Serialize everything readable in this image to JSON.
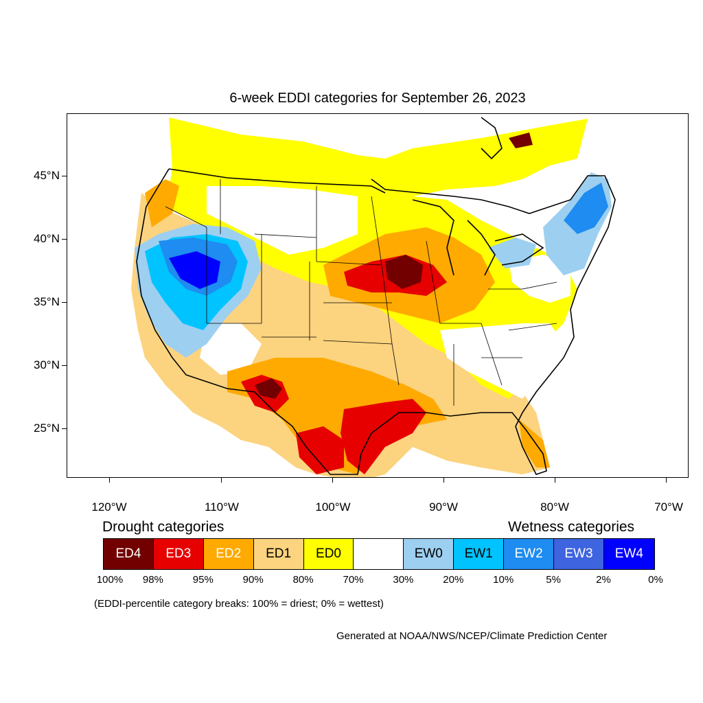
{
  "title": "6-week EDDI categories for September 26, 2023",
  "latitude_labels": [
    "45°N",
    "40°N",
    "35°N",
    "30°N",
    "25°N"
  ],
  "longitude_labels": [
    "120°W",
    "110°W",
    "100°W",
    "90°W",
    "80°W",
    "70°W"
  ],
  "legend": {
    "drought_heading": "Drought categories",
    "wetness_heading": "Wetness categories",
    "categories": [
      {
        "label": "ED4",
        "color": "#730000",
        "text_color": "#ffffff"
      },
      {
        "label": "ED3",
        "color": "#e60000",
        "text_color": "#ffffff"
      },
      {
        "label": "ED2",
        "color": "#ffaa00",
        "text_color": "#ffffff"
      },
      {
        "label": "ED1",
        "color": "#fcd37f",
        "text_color": "#000000"
      },
      {
        "label": "ED0",
        "color": "#ffff00",
        "text_color": "#000000"
      },
      {
        "label": "",
        "color": "#ffffff",
        "text_color": "#000000"
      },
      {
        "label": "EW0",
        "color": "#9dcff0",
        "text_color": "#000000"
      },
      {
        "label": "EW1",
        "color": "#00c3ff",
        "text_color": "#000000"
      },
      {
        "label": "EW2",
        "color": "#1e8cf0",
        "text_color": "#ffffff"
      },
      {
        "label": "EW3",
        "color": "#3f64e0",
        "text_color": "#ffffff"
      },
      {
        "label": "EW4",
        "color": "#0000ff",
        "text_color": "#ffffff"
      }
    ],
    "breaks": [
      "100%",
      "98%",
      "95%",
      "90%",
      "80%",
      "70%",
      "30%",
      "20%",
      "10%",
      "5%",
      "2%",
      "0%"
    ],
    "note": "(EDDI-percentile category breaks: 100% = driest; 0% = wettest)"
  },
  "credit": "Generated at NOAA/NWS/NCEP/Climate Prediction Center"
}
